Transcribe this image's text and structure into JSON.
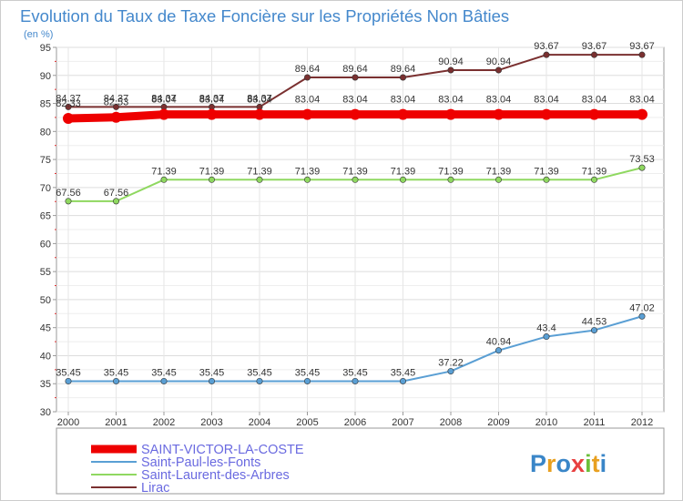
{
  "chart_data": {
    "type": "line",
    "title": "Evolution du Taux de Taxe Foncière sur les Propriétés Non Bâties",
    "subtitle": "(en %)",
    "xlabel": "",
    "ylabel": "",
    "ylim": [
      30,
      95
    ],
    "yticks": [
      30,
      35,
      40,
      45,
      50,
      55,
      60,
      65,
      70,
      75,
      80,
      85,
      90,
      95
    ],
    "grid": true,
    "legend_placement": "bottom-left",
    "x": [
      "2000",
      "2001",
      "2002",
      "2003",
      "2004",
      "2005",
      "2006",
      "2007",
      "2008",
      "2009",
      "2010",
      "2011",
      "2012"
    ],
    "series": [
      {
        "name": "SAINT-VICTOR-LA-COSTE",
        "color": "#ee0000",
        "emphasis": true,
        "values": [
          82.33,
          82.53,
          83.04,
          83.04,
          83.04,
          83.04,
          83.04,
          83.04,
          83.04,
          83.04,
          83.04,
          83.04,
          83.04
        ],
        "labels": [
          "82.33",
          "82.53",
          "83.04",
          "83.04",
          "83.04",
          "83.04",
          "83.04",
          "83.04",
          "83.04",
          "83.04",
          "83.04",
          "83.04",
          "83.04"
        ]
      },
      {
        "name": "Saint-Paul-les-Fonts",
        "color": "#5a9fd4",
        "emphasis": false,
        "values": [
          35.45,
          35.45,
          35.45,
          35.45,
          35.45,
          35.45,
          35.45,
          35.45,
          37.22,
          40.94,
          43.4,
          44.53,
          47.02
        ],
        "labels": [
          "35.45",
          "35.45",
          "35.45",
          "35.45",
          "35.45",
          "35.45",
          "35.45",
          "35.45",
          "37.22",
          "40.94",
          "43.4",
          "44.53",
          "47.02"
        ]
      },
      {
        "name": "Saint-Laurent-des-Arbres",
        "color": "#8fd860",
        "emphasis": false,
        "values": [
          67.56,
          67.56,
          71.39,
          71.39,
          71.39,
          71.39,
          71.39,
          71.39,
          71.39,
          71.39,
          71.39,
          71.39,
          73.53
        ],
        "labels": [
          "67.56",
          "67.56",
          "71.39",
          "71.39",
          "71.39",
          "71.39",
          "71.39",
          "71.39",
          "71.39",
          "71.39",
          "71.39",
          "71.39",
          "73.53"
        ]
      },
      {
        "name": "Lirac",
        "color": "#7a3030",
        "emphasis": false,
        "values": [
          84.37,
          84.37,
          84.37,
          84.37,
          84.37,
          89.64,
          89.64,
          89.64,
          90.94,
          90.94,
          93.67,
          93.67,
          93.67
        ],
        "labels": [
          "84.37",
          "84.37",
          "84.37",
          "84.37",
          "84.37",
          "89.64",
          "89.64",
          "89.64",
          "90.94",
          "90.94",
          "93.67",
          "93.67",
          "93.67"
        ]
      }
    ]
  },
  "brand": {
    "letters": [
      "P",
      "r",
      "o",
      "x",
      "i",
      "t",
      "i"
    ],
    "colors": [
      "#3a86c8",
      "#e8a020",
      "#3a86c8",
      "#e84040",
      "#6bbf3a",
      "#e8a020",
      "#3a86c8"
    ]
  }
}
